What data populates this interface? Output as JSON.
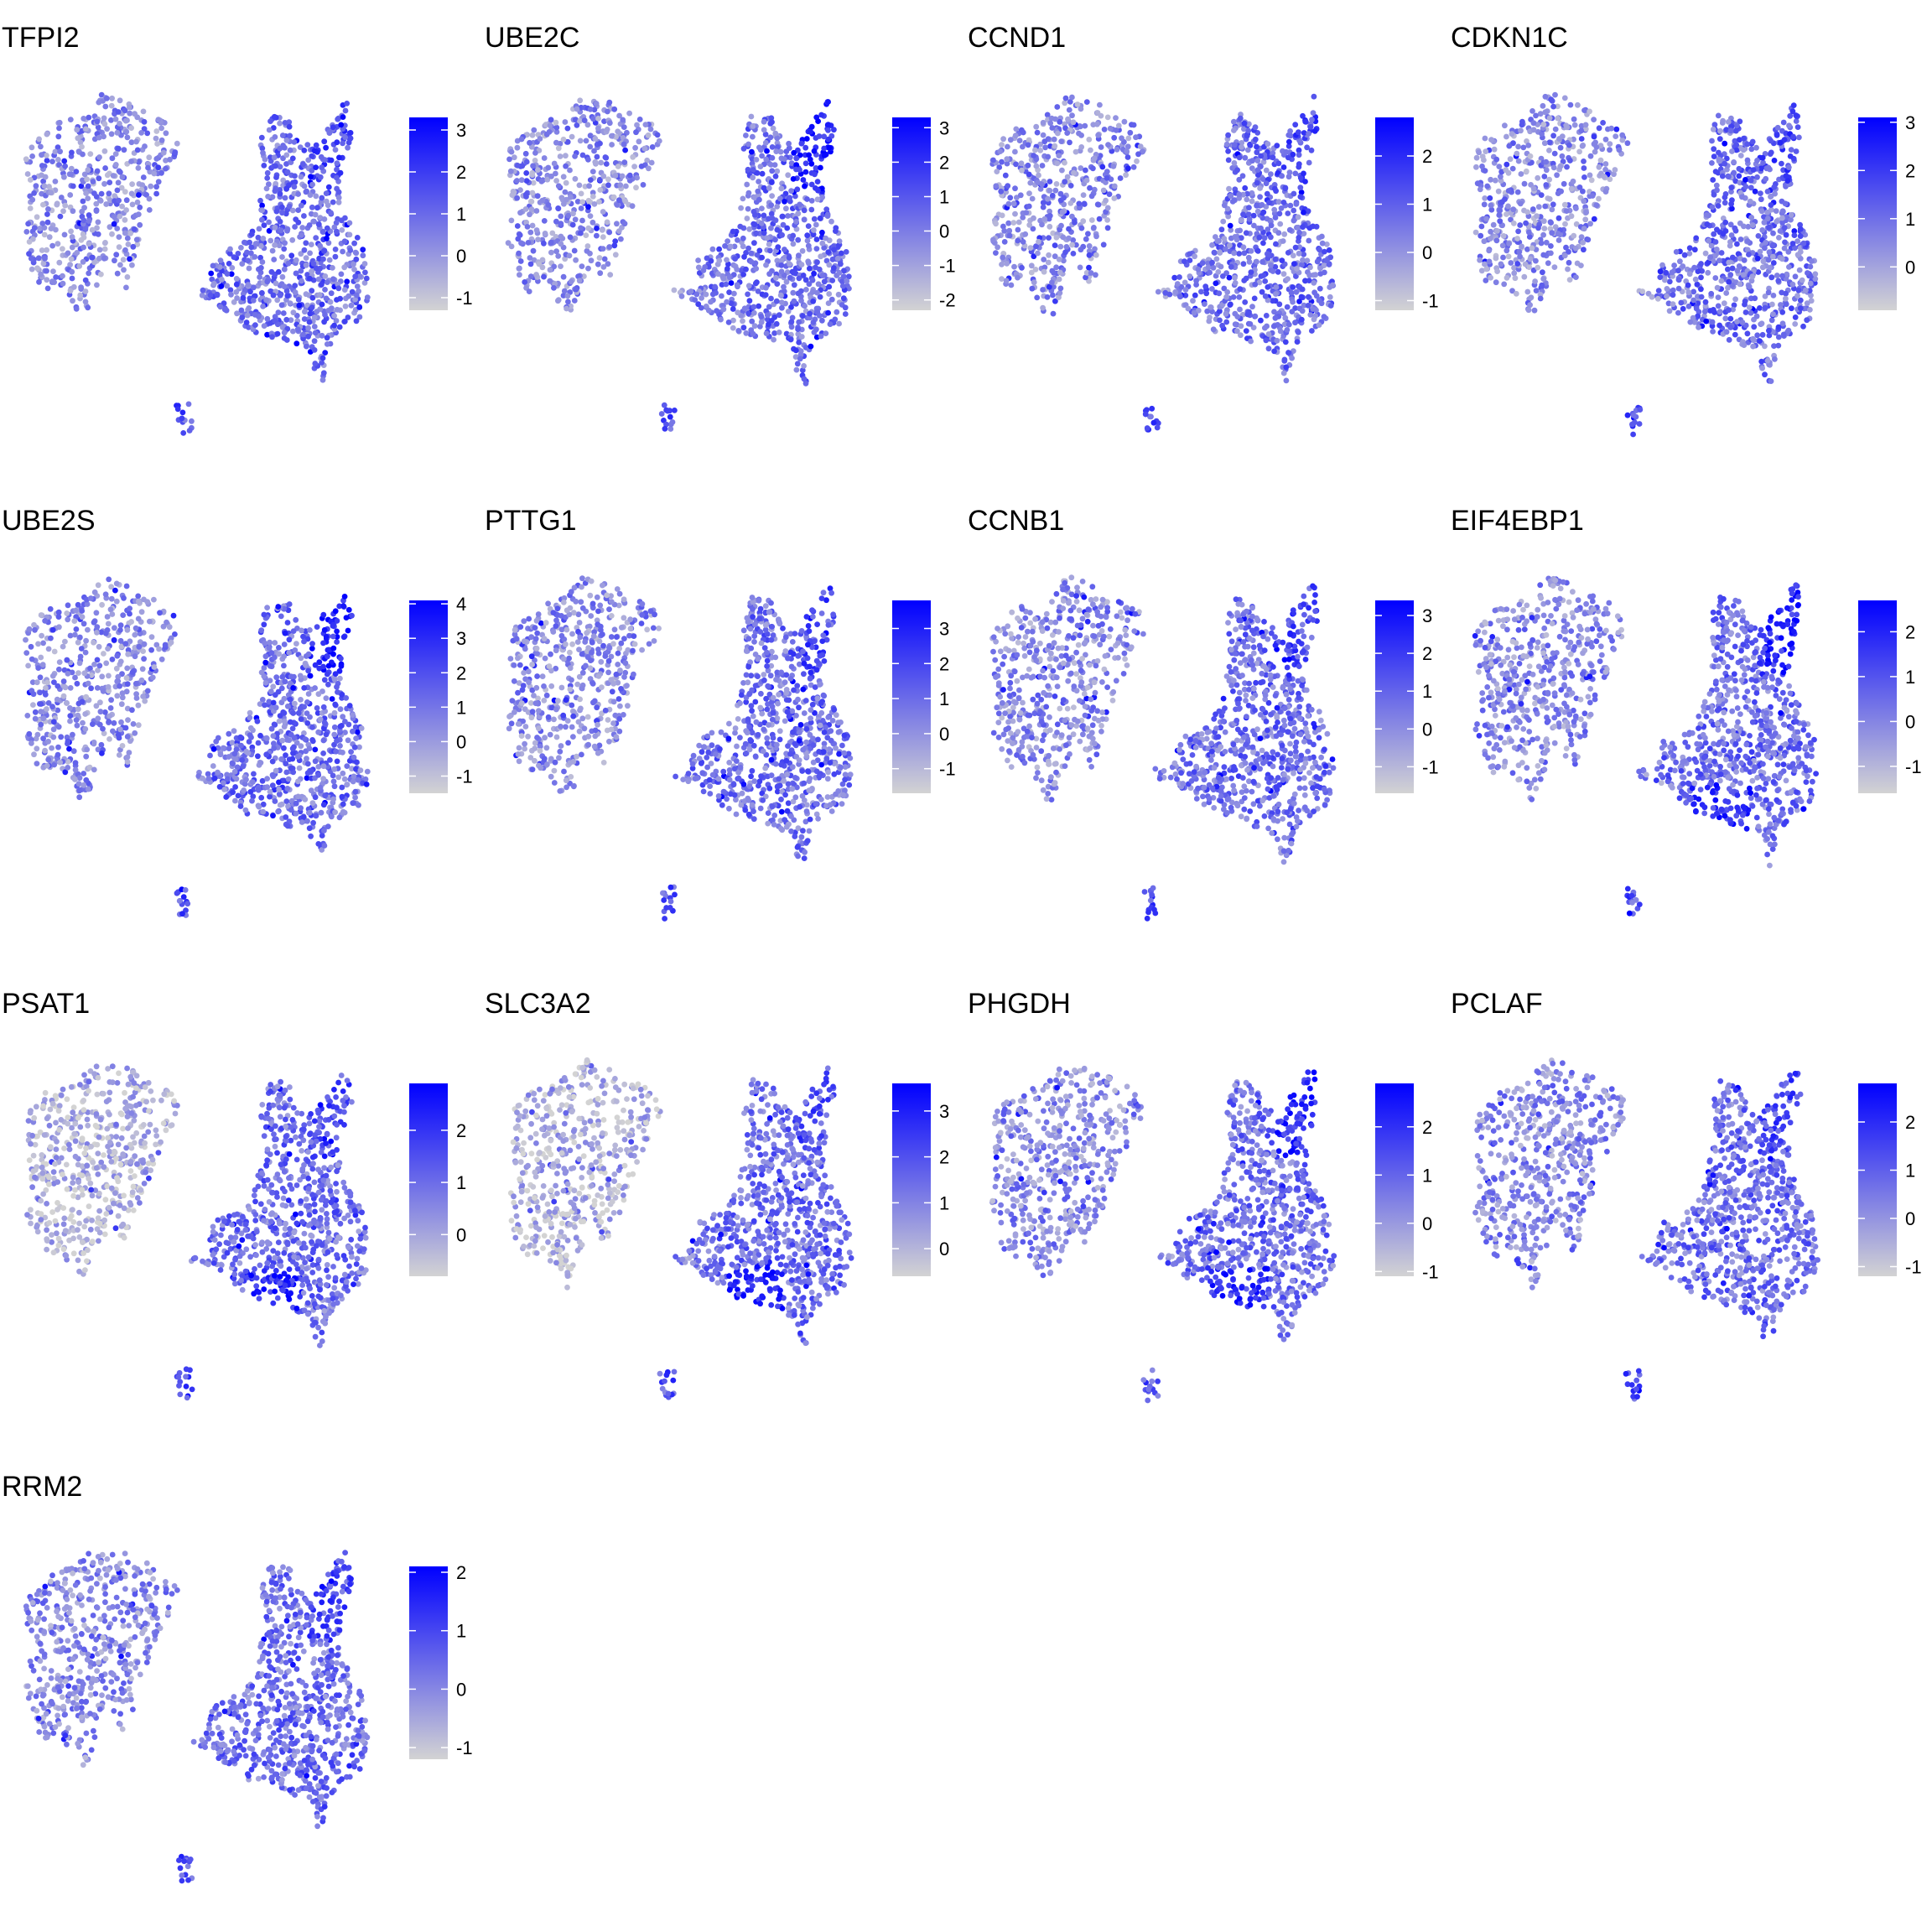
{
  "chart_data": [
    {
      "type": "scatter",
      "title": "TFPI2",
      "legend": "right",
      "colorbar": {
        "low": "#d3d3d3",
        "high": "#0000ff",
        "range": [
          -1.3,
          3.3
        ],
        "ticks": [
          -1,
          0,
          1,
          2,
          3
        ]
      }
    },
    {
      "type": "scatter",
      "title": "UBE2C",
      "legend": "right",
      "colorbar": {
        "low": "#d3d3d3",
        "high": "#0000ff",
        "range": [
          -2.3,
          3.3
        ],
        "ticks": [
          -2,
          -1,
          0,
          1,
          2,
          3
        ]
      }
    },
    {
      "type": "scatter",
      "title": "CCND1",
      "legend": "right",
      "colorbar": {
        "low": "#d3d3d3",
        "high": "#0000ff",
        "range": [
          -1.2,
          2.8
        ],
        "ticks": [
          -1,
          0,
          1,
          2
        ]
      }
    },
    {
      "type": "scatter",
      "title": "CDKN1C",
      "legend": "right",
      "colorbar": {
        "low": "#d3d3d3",
        "high": "#0000ff",
        "range": [
          -0.9,
          3.1
        ],
        "ticks": [
          0,
          1,
          2,
          3
        ]
      }
    },
    {
      "type": "scatter",
      "title": "UBE2S",
      "legend": "right",
      "colorbar": {
        "low": "#d3d3d3",
        "high": "#0000ff",
        "range": [
          -1.5,
          4.1
        ],
        "ticks": [
          -1,
          0,
          1,
          2,
          3,
          4
        ]
      }
    },
    {
      "type": "scatter",
      "title": "PTTG1",
      "legend": "right",
      "colorbar": {
        "low": "#d3d3d3",
        "high": "#0000ff",
        "range": [
          -1.7,
          3.8
        ],
        "ticks": [
          -1,
          0,
          1,
          2,
          3
        ]
      }
    },
    {
      "type": "scatter",
      "title": "CCNB1",
      "legend": "right",
      "colorbar": {
        "low": "#d3d3d3",
        "high": "#0000ff",
        "range": [
          -1.7,
          3.4
        ],
        "ticks": [
          -1,
          0,
          1,
          2,
          3
        ]
      }
    },
    {
      "type": "scatter",
      "title": "EIF4EBP1",
      "legend": "right",
      "colorbar": {
        "low": "#d3d3d3",
        "high": "#0000ff",
        "range": [
          -1.6,
          2.7
        ],
        "ticks": [
          -1,
          0,
          1,
          2
        ]
      }
    },
    {
      "type": "scatter",
      "title": "PSAT1",
      "legend": "right",
      "colorbar": {
        "low": "#d3d3d3",
        "high": "#0000ff",
        "range": [
          -0.8,
          2.9
        ],
        "ticks": [
          0,
          1,
          2
        ]
      }
    },
    {
      "type": "scatter",
      "title": "SLC3A2",
      "legend": "right",
      "colorbar": {
        "low": "#d3d3d3",
        "high": "#0000ff",
        "range": [
          -0.6,
          3.6
        ],
        "ticks": [
          0,
          1,
          2,
          3
        ]
      }
    },
    {
      "type": "scatter",
      "title": "PHGDH",
      "legend": "right",
      "colorbar": {
        "low": "#d3d3d3",
        "high": "#0000ff",
        "range": [
          -1.1,
          2.9
        ],
        "ticks": [
          -1,
          0,
          1,
          2
        ]
      }
    },
    {
      "type": "scatter",
      "title": "PCLAF",
      "legend": "right",
      "colorbar": {
        "low": "#d3d3d3",
        "high": "#0000ff",
        "range": [
          -1.2,
          2.8
        ],
        "ticks": [
          -1,
          0,
          1,
          2
        ]
      }
    },
    {
      "type": "scatter",
      "title": "RRM2",
      "legend": "right",
      "colorbar": {
        "low": "#d3d3d3",
        "high": "#0000ff",
        "range": [
          -1.2,
          2.1
        ],
        "ticks": [
          -1,
          0,
          1,
          2
        ]
      }
    }
  ]
}
